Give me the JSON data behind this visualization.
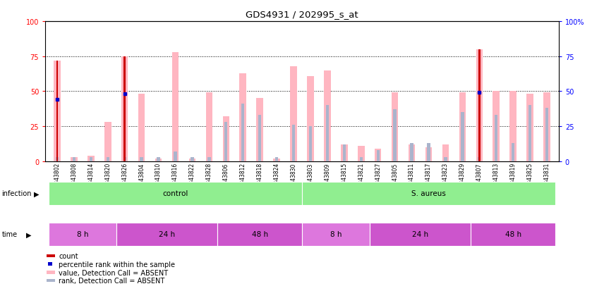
{
  "title": "GDS4931 / 202995_s_at",
  "samples": [
    "GSM343802",
    "GSM343808",
    "GSM343814",
    "GSM343820",
    "GSM343826",
    "GSM343804",
    "GSM343810",
    "GSM343816",
    "GSM343822",
    "GSM343828",
    "GSM343806",
    "GSM343812",
    "GSM343818",
    "GSM343824",
    "GSM343830",
    "GSM343803",
    "GSM343809",
    "GSM343815",
    "GSM343821",
    "GSM343827",
    "GSM343805",
    "GSM343811",
    "GSM343817",
    "GSM343823",
    "GSM343829",
    "GSM343807",
    "GSM343813",
    "GSM343819",
    "GSM343825",
    "GSM343831"
  ],
  "pink_bars": [
    72,
    3,
    4,
    28,
    75,
    48,
    2,
    78,
    2,
    49,
    32,
    63,
    45,
    2,
    68,
    61,
    65,
    12,
    11,
    9,
    49,
    12,
    10,
    12,
    49,
    80,
    50,
    50,
    48,
    49
  ],
  "blue_bars": [
    3,
    3,
    3,
    3,
    3,
    3,
    3,
    7,
    3,
    3,
    28,
    41,
    33,
    3,
    26,
    25,
    40,
    12,
    3,
    8,
    37,
    13,
    13,
    3,
    35,
    3,
    33,
    13,
    40,
    38
  ],
  "red_bars": [
    72,
    0,
    0,
    0,
    75,
    0,
    0,
    0,
    0,
    0,
    0,
    0,
    0,
    0,
    0,
    0,
    0,
    0,
    0,
    0,
    0,
    0,
    0,
    0,
    0,
    80,
    0,
    0,
    0,
    0
  ],
  "blue_squares": [
    44,
    0,
    0,
    0,
    48,
    0,
    0,
    0,
    0,
    0,
    0,
    0,
    0,
    0,
    0,
    0,
    0,
    0,
    0,
    0,
    0,
    0,
    0,
    0,
    0,
    49,
    0,
    0,
    0,
    0
  ],
  "infection_groups": [
    {
      "label": "control",
      "start": 0,
      "end": 14,
      "color": "#90ee90"
    },
    {
      "label": "S. aureus",
      "start": 15,
      "end": 29,
      "color": "#90ee90"
    }
  ],
  "time_groups": [
    {
      "label": "8 h",
      "start": 0,
      "end": 3,
      "color": "#dd77dd"
    },
    {
      "label": "24 h",
      "start": 4,
      "end": 9,
      "color": "#cc55cc"
    },
    {
      "label": "48 h",
      "start": 10,
      "end": 14,
      "color": "#cc55cc"
    },
    {
      "label": "8 h",
      "start": 15,
      "end": 18,
      "color": "#dd77dd"
    },
    {
      "label": "24 h",
      "start": 19,
      "end": 24,
      "color": "#cc55cc"
    },
    {
      "label": "48 h",
      "start": 25,
      "end": 29,
      "color": "#cc55cc"
    }
  ],
  "time_colors": [
    "#dd77dd",
    "#cc55cc",
    "#cc55cc",
    "#dd77dd",
    "#cc55cc",
    "#cc55cc"
  ],
  "ylim": [
    0,
    100
  ],
  "pink_color": "#ffb6c1",
  "blue_color": "#aab4cc",
  "red_color": "#cc0000",
  "dark_blue_color": "#0000cc",
  "bg_tick_color": "#d0d0d0"
}
